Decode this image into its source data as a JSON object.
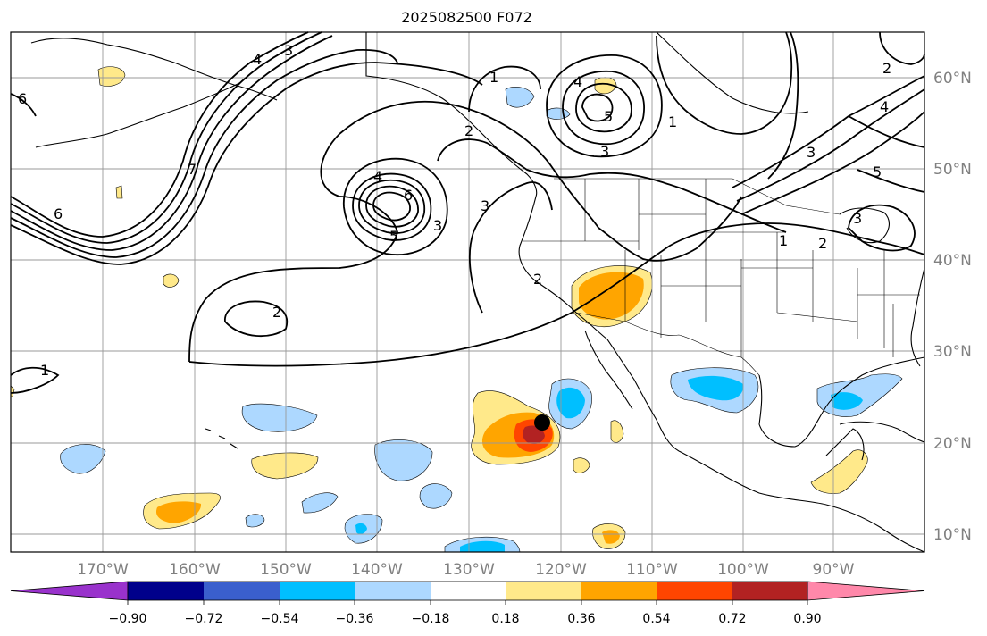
{
  "title": "2025082500 F072",
  "map": {
    "lon_labels": [
      "170°W",
      "160°W",
      "150°W",
      "140°W",
      "130°W",
      "120°W",
      "110°W",
      "100°W",
      "90°W"
    ],
    "lat_labels": [
      "60°N",
      "50°N",
      "40°N",
      "30°N",
      "20°N",
      "10°N"
    ],
    "contour_labels": [
      "1",
      "2",
      "3",
      "4",
      "5",
      "6",
      "7"
    ],
    "marker": "storm-center"
  },
  "colorbar": {
    "ticks": [
      "−0.90",
      "−0.72",
      "−0.54",
      "−0.36",
      "−0.18",
      "0.18",
      "0.36",
      "0.54",
      "0.72",
      "0.90"
    ],
    "colors": [
      "#9932cc",
      "#00008b",
      "#3a5fcd",
      "#00bfff",
      "#add8ff",
      "#ffffff",
      "#ffe98a",
      "#ffa500",
      "#ff4500",
      "#b22222",
      "#ff88aa"
    ]
  },
  "fill_colors": {
    "light_blue": "#add8ff",
    "blue": "#00bfff",
    "light_yellow": "#ffe98a",
    "orange": "#ffa500",
    "red_orange": "#ff4500",
    "dark_red": "#b22222"
  }
}
